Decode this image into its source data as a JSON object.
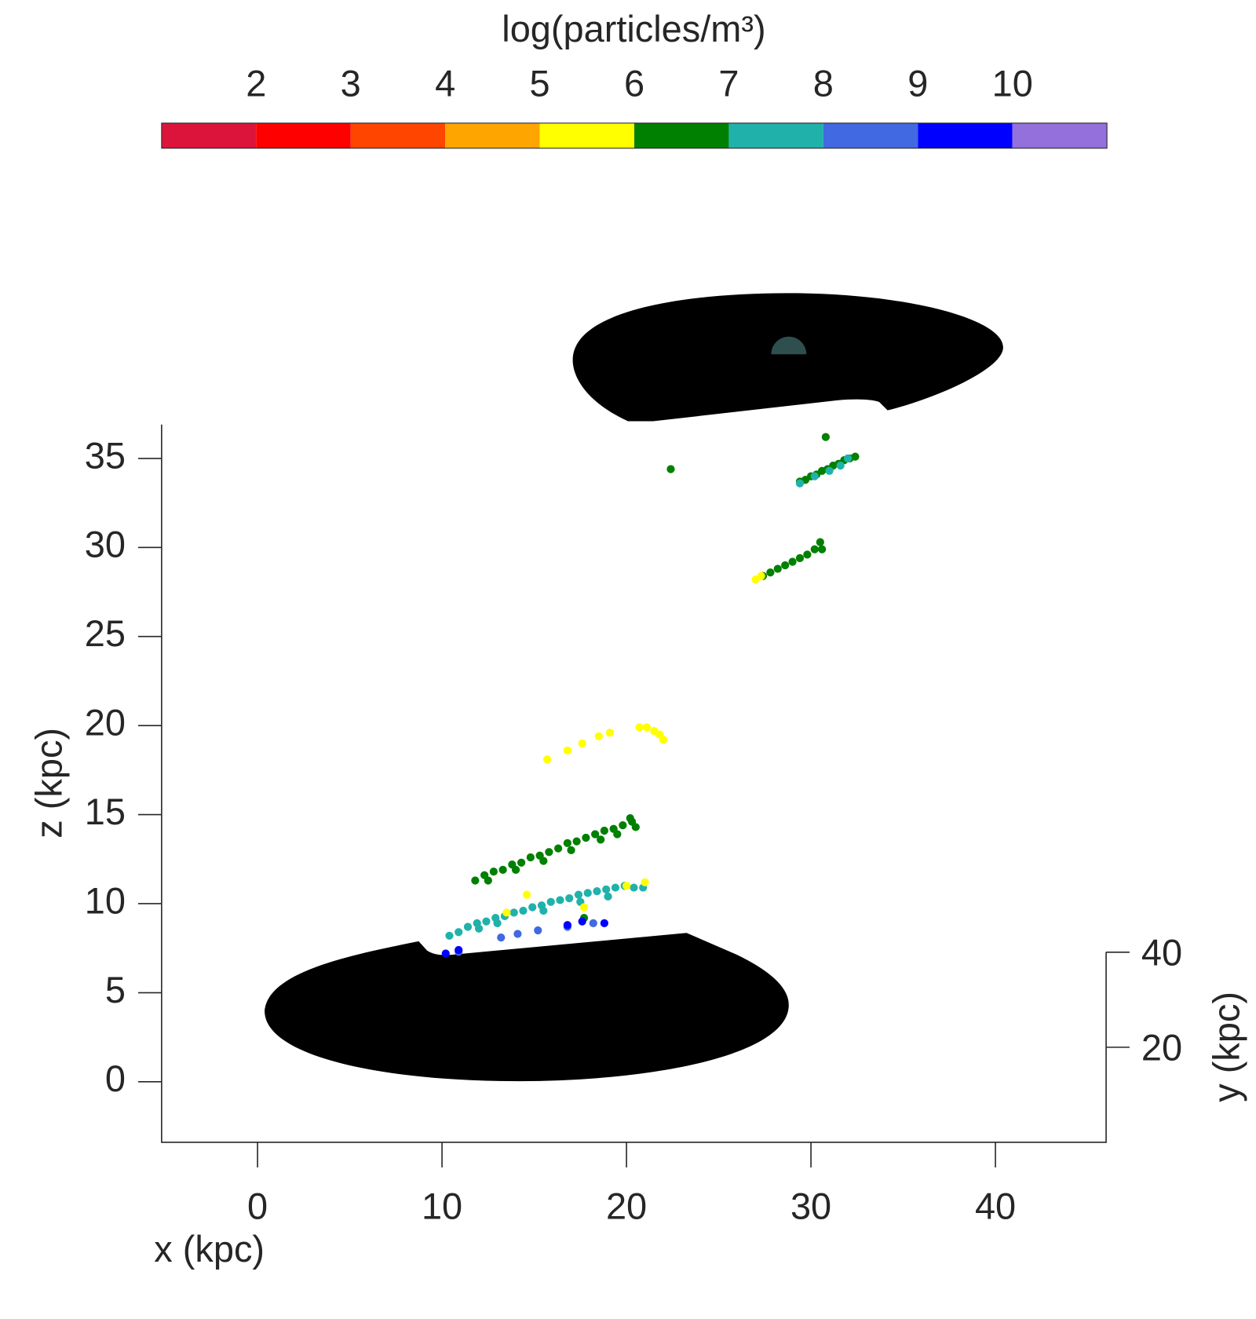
{
  "chart_data": {
    "type": "scatter",
    "xlabel": "x (kpc)",
    "zlabel": "z (kpc)",
    "ylabel": "y (kpc)",
    "xlim": [
      -5.2,
      46.0
    ],
    "xticks": [
      0,
      10,
      20,
      30,
      40
    ],
    "zlim": [
      -3.4,
      36.9
    ],
    "zticks": [
      0,
      5,
      10,
      15,
      20,
      25,
      30,
      35
    ],
    "ylim": [
      0,
      40
    ],
    "yticks": [
      20,
      40
    ],
    "colorbar": {
      "label": "log(particles/m³)",
      "clim": [
        1,
        11
      ],
      "ticks": [
        2,
        3,
        4,
        5,
        6,
        7,
        8,
        9,
        10
      ],
      "colors": [
        "#dc143c",
        "#ff0000",
        "#ff4500",
        "#ffa500",
        "#ffff00",
        "#008000",
        "#20b2aa",
        "#4169e1",
        "#0000ff",
        "#9370db"
      ]
    },
    "series": [
      {
        "color": "#008000",
        "x": [
          29.4,
          29.7,
          30.0,
          30.3,
          30.6,
          30.9,
          31.2,
          31.5,
          31.8,
          32.1,
          32.4,
          30.8,
          22.4,
          27.4,
          27.8,
          28.2,
          28.6,
          29.0,
          29.4,
          29.8,
          30.2,
          30.5,
          30.6,
          11.8,
          12.3,
          12.8,
          13.3,
          13.8,
          14.3,
          14.8,
          15.3,
          15.8,
          16.3,
          16.8,
          17.3,
          17.8,
          18.3,
          18.8,
          19.3,
          19.8,
          20.3,
          20.5,
          20.2,
          19.5,
          18.6,
          17.0,
          15.5,
          14.0,
          12.5,
          17.7
        ],
        "values": [
          33.7,
          33.8,
          34.0,
          34.1,
          34.3,
          34.4,
          34.6,
          34.7,
          34.9,
          35.0,
          35.1,
          36.2,
          34.4,
          28.4,
          28.6,
          28.8,
          29.0,
          29.2,
          29.4,
          29.6,
          29.9,
          30.3,
          29.9,
          11.3,
          11.6,
          11.8,
          11.9,
          12.2,
          12.3,
          12.6,
          12.7,
          12.9,
          13.1,
          13.4,
          13.5,
          13.7,
          13.9,
          14.1,
          14.2,
          14.4,
          14.6,
          14.3,
          14.8,
          13.9,
          13.6,
          13.0,
          12.4,
          11.9,
          11.3,
          9.2
        ]
      },
      {
        "color": "#20b2aa",
        "x": [
          29.4,
          30.2,
          31.0,
          32.0,
          31.6,
          10.4,
          10.9,
          11.4,
          11.9,
          12.4,
          12.9,
          13.4,
          13.9,
          14.4,
          14.9,
          15.4,
          15.9,
          16.4,
          16.9,
          17.4,
          17.9,
          18.4,
          18.9,
          19.4,
          19.9,
          20.4,
          20.9,
          19.0,
          17.5,
          15.5,
          13.0,
          12.0
        ],
        "values": [
          33.6,
          34.0,
          34.3,
          35.0,
          34.6,
          8.2,
          8.4,
          8.7,
          8.9,
          9.0,
          9.2,
          9.3,
          9.5,
          9.6,
          9.8,
          9.9,
          10.1,
          10.2,
          10.3,
          10.5,
          10.6,
          10.7,
          10.8,
          10.9,
          11.0,
          10.9,
          10.9,
          10.4,
          10.1,
          9.6,
          8.9,
          8.6
        ]
      },
      {
        "color": "#ffff00",
        "x": [
          27.0,
          27.3,
          15.7,
          16.8,
          17.6,
          18.5,
          19.1,
          20.7,
          21.1,
          21.5,
          21.8,
          22.0,
          14.6,
          17.7,
          20.0,
          21.0,
          13.5
        ],
        "values": [
          28.2,
          28.4,
          18.1,
          18.6,
          19.0,
          19.4,
          19.6,
          19.9,
          19.9,
          19.7,
          19.5,
          19.2,
          10.5,
          9.8,
          11.0,
          11.2,
          9.5
        ]
      },
      {
        "color": "#4169e1",
        "x": [
          13.2,
          14.1,
          15.2,
          18.2,
          10.9,
          16.8
        ],
        "values": [
          8.1,
          8.3,
          8.5,
          8.9,
          7.3,
          8.7
        ]
      },
      {
        "color": "#0000ff",
        "x": [
          10.2,
          10.9,
          16.8,
          17.6,
          18.8
        ],
        "values": [
          7.2,
          7.4,
          8.8,
          9.0,
          8.9
        ]
      }
    ]
  }
}
